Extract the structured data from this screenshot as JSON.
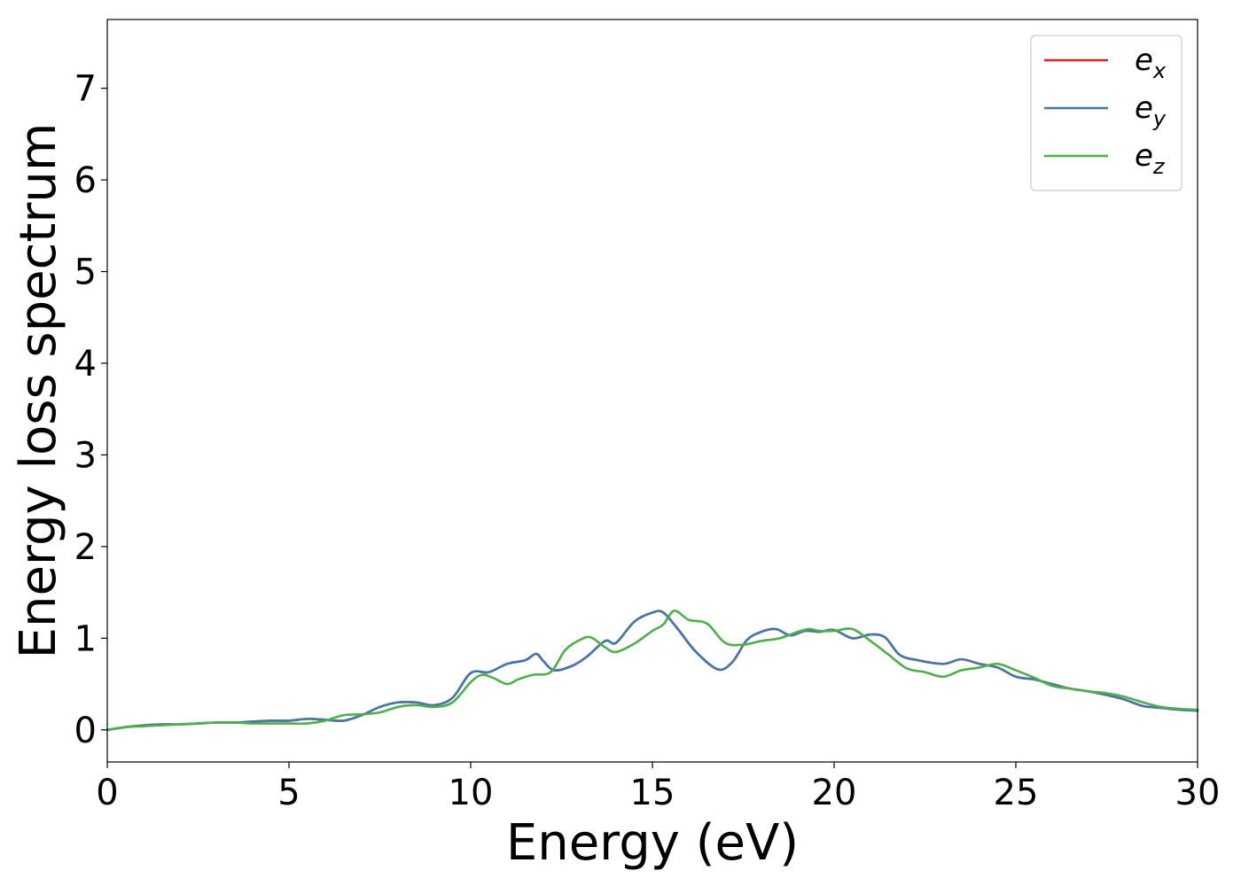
{
  "chart_data": {
    "type": "line",
    "title": "",
    "xlabel": "Energy (eV)",
    "ylabel": "Energy loss spectrum",
    "xlim": [
      0,
      30
    ],
    "ylim": [
      -0.35,
      7.75
    ],
    "xticks": [
      0,
      5,
      10,
      15,
      20,
      25,
      30
    ],
    "yticks": [
      0,
      1,
      2,
      3,
      4,
      5,
      6,
      7
    ],
    "xtick_labels": [
      "0",
      "5",
      "10",
      "15",
      "20",
      "25",
      "30"
    ],
    "ytick_labels": [
      "0",
      "1",
      "2",
      "3",
      "4",
      "5",
      "6",
      "7"
    ],
    "grid": false,
    "legend_position": "top-right",
    "series": [
      {
        "name": "e_x",
        "label_base": "e",
        "label_sub": "x",
        "color": "#d62728",
        "x": [
          0,
          0.5,
          1,
          1.5,
          2,
          2.5,
          3,
          3.5,
          4,
          4.5,
          5,
          5.5,
          6,
          6.5,
          7,
          7.5,
          8,
          8.5,
          9,
          9.5,
          10,
          10.5,
          11,
          11.5,
          11.8,
          12,
          12.3,
          12.8,
          13.2,
          13.7,
          14,
          14.5,
          15,
          15.3,
          15.7,
          16.2,
          16.8,
          17.2,
          17.6,
          18,
          18.4,
          18.8,
          19.2,
          19.6,
          20,
          20.5,
          21,
          21.4,
          21.8,
          22.3,
          23,
          23.5,
          24,
          24.5,
          25,
          25.5,
          26,
          26.5,
          27,
          27.5,
          28,
          28.5,
          29,
          29.5,
          30
        ],
        "y": [
          0.0,
          0.03,
          0.05,
          0.06,
          0.06,
          0.07,
          0.08,
          0.08,
          0.09,
          0.1,
          0.1,
          0.12,
          0.11,
          0.1,
          0.16,
          0.25,
          0.3,
          0.3,
          0.27,
          0.35,
          0.62,
          0.63,
          0.72,
          0.76,
          0.83,
          0.75,
          0.65,
          0.7,
          0.8,
          0.97,
          0.95,
          1.18,
          1.28,
          1.28,
          1.1,
          0.85,
          0.66,
          0.74,
          0.98,
          1.07,
          1.1,
          1.03,
          1.08,
          1.07,
          1.09,
          1.0,
          1.04,
          1.01,
          0.82,
          0.76,
          0.72,
          0.77,
          0.72,
          0.68,
          0.58,
          0.55,
          0.5,
          0.45,
          0.42,
          0.38,
          0.33,
          0.26,
          0.24,
          0.22,
          0.21
        ]
      },
      {
        "name": "e_y",
        "label_base": "e",
        "label_sub": "y",
        "color": "#4477aa",
        "x": [
          0,
          0.5,
          1,
          1.5,
          2,
          2.5,
          3,
          3.5,
          4,
          4.5,
          5,
          5.5,
          6,
          6.5,
          7,
          7.5,
          8,
          8.5,
          9,
          9.5,
          10,
          10.5,
          11,
          11.5,
          11.8,
          12,
          12.3,
          12.8,
          13.2,
          13.7,
          14,
          14.5,
          15,
          15.3,
          15.7,
          16.2,
          16.8,
          17.2,
          17.6,
          18,
          18.4,
          18.8,
          19.2,
          19.6,
          20,
          20.5,
          21,
          21.4,
          21.8,
          22.3,
          23,
          23.5,
          24,
          24.5,
          25,
          25.5,
          26,
          26.5,
          27,
          27.5,
          28,
          28.5,
          29,
          29.5,
          30
        ],
        "y": [
          0.0,
          0.03,
          0.05,
          0.06,
          0.06,
          0.07,
          0.08,
          0.08,
          0.09,
          0.1,
          0.1,
          0.12,
          0.11,
          0.1,
          0.16,
          0.25,
          0.3,
          0.3,
          0.27,
          0.35,
          0.62,
          0.63,
          0.72,
          0.76,
          0.83,
          0.75,
          0.65,
          0.7,
          0.8,
          0.97,
          0.95,
          1.18,
          1.28,
          1.28,
          1.1,
          0.85,
          0.66,
          0.74,
          0.98,
          1.07,
          1.1,
          1.03,
          1.08,
          1.07,
          1.09,
          1.0,
          1.04,
          1.01,
          0.82,
          0.76,
          0.72,
          0.77,
          0.72,
          0.68,
          0.58,
          0.55,
          0.5,
          0.45,
          0.42,
          0.38,
          0.33,
          0.26,
          0.24,
          0.22,
          0.21
        ]
      },
      {
        "name": "e_z",
        "label_base": "e",
        "label_sub": "z",
        "color": "#4daf4a",
        "x": [
          0,
          0.5,
          1,
          1.5,
          2,
          2.5,
          3,
          3.5,
          4,
          4.5,
          5,
          5.5,
          6,
          6.5,
          7,
          7.5,
          8,
          8.5,
          9,
          9.5,
          10,
          10.3,
          10.6,
          11,
          11.3,
          11.7,
          12.2,
          12.6,
          13,
          13.3,
          13.7,
          14,
          14.5,
          15,
          15.3,
          15.6,
          16,
          16.5,
          17,
          17.5,
          18,
          18.5,
          19,
          19.3,
          19.6,
          20,
          20.5,
          21,
          21.5,
          22,
          22.5,
          23,
          23.5,
          24,
          24.5,
          25,
          25.5,
          26,
          26.5,
          27,
          27.5,
          28,
          28.5,
          29,
          29.5,
          30
        ],
        "y": [
          0.0,
          0.03,
          0.04,
          0.05,
          0.06,
          0.07,
          0.08,
          0.08,
          0.07,
          0.07,
          0.07,
          0.07,
          0.1,
          0.16,
          0.17,
          0.19,
          0.25,
          0.27,
          0.25,
          0.3,
          0.52,
          0.6,
          0.57,
          0.5,
          0.55,
          0.6,
          0.63,
          0.87,
          0.98,
          1.01,
          0.9,
          0.85,
          0.94,
          1.08,
          1.15,
          1.3,
          1.2,
          1.16,
          0.95,
          0.93,
          0.97,
          1.0,
          1.07,
          1.1,
          1.08,
          1.08,
          1.1,
          0.97,
          0.82,
          0.67,
          0.63,
          0.58,
          0.65,
          0.68,
          0.72,
          0.65,
          0.57,
          0.48,
          0.45,
          0.42,
          0.4,
          0.36,
          0.3,
          0.25,
          0.23,
          0.22
        ]
      }
    ]
  }
}
